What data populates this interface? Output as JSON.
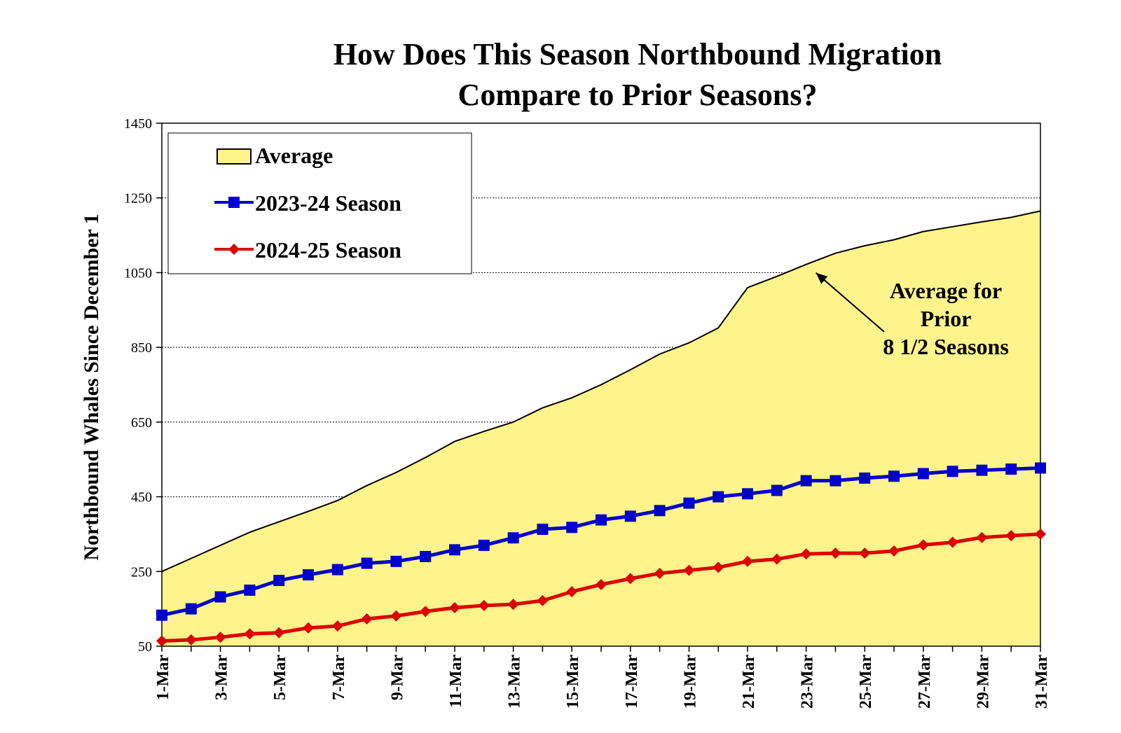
{
  "chart_data": {
    "type": "line",
    "title": [
      "How Does This Season Northbound Migration",
      "Compare to Prior Seasons?"
    ],
    "xlabel": "",
    "ylabel": "Northbound Whales Since December 1",
    "ylim": [
      50,
      1450
    ],
    "yticks": [
      50,
      250,
      450,
      650,
      850,
      1050,
      1250,
      1450
    ],
    "x_tick_labels": [
      "1-Mar",
      "3-Mar",
      "5-Mar",
      "7-Mar",
      "9-Mar",
      "11-Mar",
      "13-Mar",
      "15-Mar",
      "17-Mar",
      "19-Mar",
      "21-Mar",
      "23-Mar",
      "25-Mar",
      "27-Mar",
      "29-Mar",
      "31-Mar"
    ],
    "days": [
      1,
      2,
      3,
      4,
      5,
      6,
      7,
      8,
      9,
      10,
      11,
      12,
      13,
      14,
      15,
      16,
      17,
      18,
      19,
      20,
      21,
      22,
      23,
      24,
      25,
      26,
      27,
      28,
      29,
      30,
      31
    ],
    "grid": "horizontal dotted",
    "legend_position": "top-left",
    "series": [
      {
        "name": "Average",
        "style": "area",
        "color": "#FFF48C",
        "values": [
          250,
          285,
          320,
          355,
          383,
          411,
          440,
          480,
          515,
          555,
          598,
          625,
          650,
          688,
          715,
          750,
          790,
          832,
          862,
          902,
          1010,
          1040,
          1072,
          1102,
          1122,
          1138,
          1160,
          1173,
          1186,
          1198,
          1215
        ]
      },
      {
        "name": "2023-24 Season",
        "style": "line-square",
        "color": "#0000CC",
        "values": [
          133,
          150,
          182,
          200,
          226,
          241,
          255,
          272,
          277,
          290,
          308,
          320,
          340,
          363,
          368,
          388,
          398,
          413,
          433,
          450,
          458,
          467,
          493,
          493,
          500,
          505,
          512,
          518,
          521,
          524,
          527
        ]
      },
      {
        "name": "2024-25 Season",
        "style": "line-diamond",
        "color": "#DD0000",
        "values": [
          64,
          67,
          74,
          83,
          86,
          99,
          104,
          123,
          131,
          143,
          153,
          159,
          162,
          172,
          196,
          215,
          231,
          245,
          253,
          261,
          277,
          283,
          297,
          299,
          299,
          305,
          321,
          328,
          341,
          346,
          350
        ]
      }
    ],
    "annotation": {
      "lines": [
        "Average for",
        "Prior",
        "8 1/2 Seasons"
      ],
      "points_to_day": 23
    }
  }
}
